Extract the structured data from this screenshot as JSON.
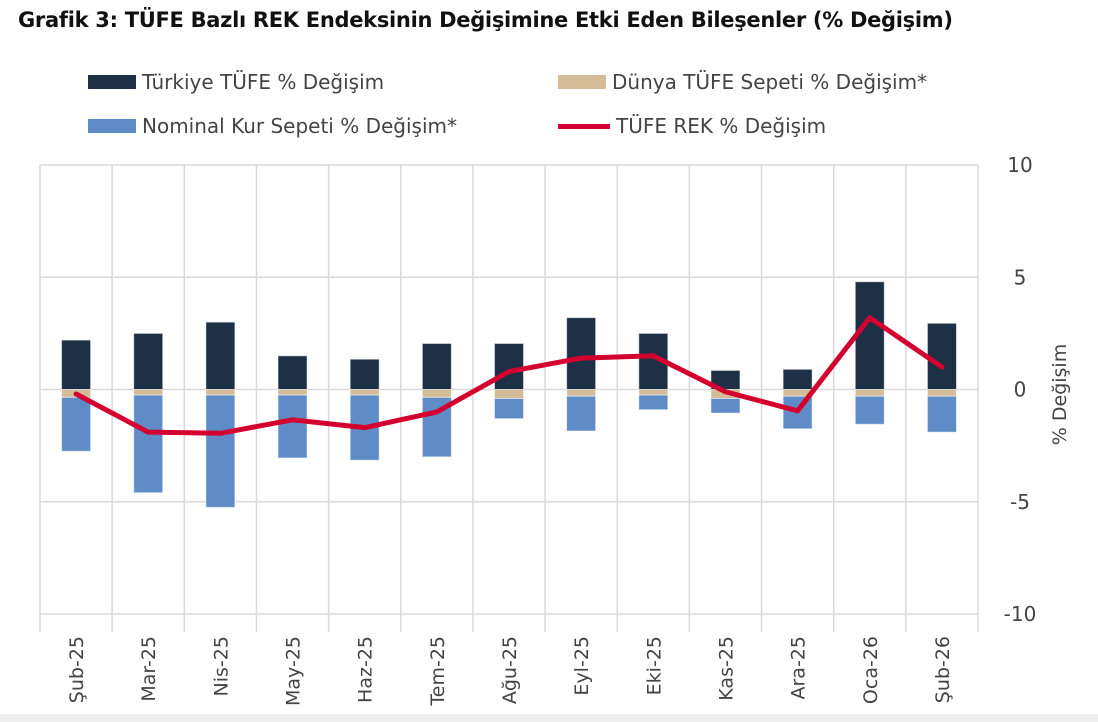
{
  "title": "Grafik 3: TÜFE Bazlı REK Endeksinin Değişimine Etki Eden Bileşenler (% Değişim)",
  "chart_data": {
    "type": "bar",
    "stacked": true,
    "categories": [
      "Şub-25",
      "Mar-25",
      "Nis-25",
      "May-25",
      "Haz-25",
      "Tem-25",
      "Ağu-25",
      "Eyl-25",
      "Eki-25",
      "Kas-25",
      "Ara-25",
      "Oca-26",
      "Şub-26"
    ],
    "series": [
      {
        "name": "Türkiye TÜFE % Değişim",
        "type": "bar",
        "color": "#1d3045",
        "values": [
          2.2,
          2.5,
          3.0,
          1.5,
          1.35,
          2.05,
          2.05,
          3.2,
          2.5,
          0.85,
          0.9,
          4.8,
          2.95
        ]
      },
      {
        "name": "Dünya TÜFE Sepeti % Değişim*",
        "type": "bar",
        "color": "#d4bc99",
        "values": [
          -0.35,
          -0.25,
          -0.25,
          -0.25,
          -0.25,
          -0.35,
          -0.4,
          -0.3,
          -0.25,
          -0.4,
          -0.3,
          -0.3,
          -0.3
        ]
      },
      {
        "name": "Nominal Kur Sepeti % Değişim*",
        "type": "bar",
        "color": "#5f8cc6",
        "values": [
          -2.4,
          -4.35,
          -5.0,
          -2.8,
          -2.9,
          -2.65,
          -0.9,
          -1.55,
          -0.65,
          -0.65,
          -1.45,
          -1.25,
          -1.6
        ]
      },
      {
        "name": "TÜFE REK % Değişim",
        "type": "line",
        "color": "#d4002f",
        "values": [
          -0.2,
          -1.9,
          -1.95,
          -1.35,
          -1.7,
          -1.0,
          0.8,
          1.4,
          1.5,
          -0.1,
          -0.95,
          3.2,
          1.0
        ]
      }
    ],
    "ylabel": "% Değişim",
    "ylim": [
      -10,
      10
    ],
    "yticks": [
      10,
      5,
      0,
      -5,
      -10
    ],
    "y_axis_side": "right",
    "grid": true,
    "legend_placement": "top"
  }
}
